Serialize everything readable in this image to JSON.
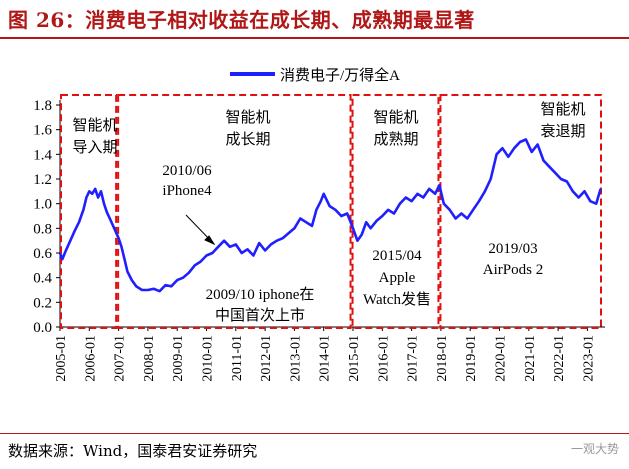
{
  "header": {
    "title": "图 26：消费电子相对收益在成长期、成熟期最显著"
  },
  "footer": {
    "source": "数据来源：Wind，国泰君安证券研究",
    "watermark": "一观大势"
  },
  "chart_data": {
    "type": "line",
    "legend": "消费电子/万得全A",
    "series_color": "#1f1fff",
    "box_color": "#e01010",
    "ylim": [
      0,
      1.8
    ],
    "yticks": [
      "0.0",
      "0.2",
      "0.4",
      "0.6",
      "0.8",
      "1.0",
      "1.2",
      "1.4",
      "1.6",
      "1.8"
    ],
    "xlim": [
      2005.0,
      2023.6
    ],
    "xticks": [
      "2005-01",
      "2006-01",
      "2007-01",
      "2008-01",
      "2009-01",
      "2010-01",
      "2011-01",
      "2012-01",
      "2013-01",
      "2014-01",
      "2015-01",
      "2016-01",
      "2017-01",
      "2018-01",
      "2019-01",
      "2020-01",
      "2021-01",
      "2022-01",
      "2023-01"
    ],
    "phases": [
      {
        "label": "智能机\n导入期",
        "start": 2005.0,
        "end": 2006.95
      },
      {
        "label": "智能机\n成长期",
        "start": 2006.95,
        "end": 2014.95
      },
      {
        "label": "智能机\n成熟期",
        "start": 2014.95,
        "end": 2017.95
      },
      {
        "label": "智能机\n衰退期",
        "start": 2017.95,
        "end": 2023.6
      }
    ],
    "annotations": [
      {
        "text": "2010/06\niPhone4"
      },
      {
        "text": "2009/10 iphone在\n中国首次上市"
      },
      {
        "text": "2015/04\nApple\nWatch发售"
      },
      {
        "text": "2019/03\nAirPods 2"
      }
    ],
    "x": [
      2005.0,
      2005.08,
      2005.2,
      2005.35,
      2005.5,
      2005.65,
      2005.8,
      2005.9,
      2006.0,
      2006.1,
      2006.2,
      2006.3,
      2006.4,
      2006.5,
      2006.6,
      2006.7,
      2006.85,
      2007.0,
      2007.1,
      2007.2,
      2007.3,
      2007.45,
      2007.6,
      2007.8,
      2008.0,
      2008.2,
      2008.4,
      2008.6,
      2008.8,
      2009.0,
      2009.2,
      2009.4,
      2009.6,
      2009.8,
      2010.0,
      2010.2,
      2010.4,
      2010.6,
      2010.8,
      2011.0,
      2011.2,
      2011.4,
      2011.6,
      2011.8,
      2012.0,
      2012.2,
      2012.4,
      2012.6,
      2012.8,
      2013.0,
      2013.2,
      2013.4,
      2013.6,
      2013.75,
      2013.9,
      2014.0,
      2014.2,
      2014.4,
      2014.6,
      2014.8,
      2015.0,
      2015.15,
      2015.3,
      2015.45,
      2015.6,
      2015.8,
      2016.0,
      2016.2,
      2016.4,
      2016.6,
      2016.8,
      2017.0,
      2017.2,
      2017.4,
      2017.6,
      2017.8,
      2017.95,
      2018.1,
      2018.3,
      2018.5,
      2018.7,
      2018.9,
      2019.1,
      2019.3,
      2019.5,
      2019.7,
      2019.9,
      2020.1,
      2020.3,
      2020.5,
      2020.7,
      2020.9,
      2021.1,
      2021.3,
      2021.5,
      2021.7,
      2021.9,
      2022.1,
      2022.3,
      2022.5,
      2022.7,
      2022.9,
      2023.1,
      2023.3,
      2023.45
    ],
    "y": [
      0.6,
      0.55,
      0.62,
      0.7,
      0.78,
      0.85,
      0.95,
      1.05,
      1.1,
      1.08,
      1.12,
      1.05,
      1.1,
      1.0,
      0.93,
      0.88,
      0.8,
      0.72,
      0.65,
      0.55,
      0.45,
      0.38,
      0.33,
      0.3,
      0.3,
      0.31,
      0.29,
      0.34,
      0.33,
      0.38,
      0.4,
      0.44,
      0.5,
      0.53,
      0.58,
      0.6,
      0.65,
      0.7,
      0.65,
      0.67,
      0.6,
      0.63,
      0.58,
      0.68,
      0.62,
      0.67,
      0.7,
      0.72,
      0.76,
      0.8,
      0.88,
      0.85,
      0.82,
      0.95,
      1.02,
      1.08,
      0.98,
      0.95,
      0.9,
      0.92,
      0.8,
      0.7,
      0.75,
      0.85,
      0.8,
      0.86,
      0.9,
      0.95,
      0.92,
      1.0,
      1.05,
      1.02,
      1.08,
      1.05,
      1.12,
      1.08,
      1.15,
      1.0,
      0.95,
      0.88,
      0.92,
      0.88,
      0.95,
      1.02,
      1.1,
      1.2,
      1.4,
      1.45,
      1.38,
      1.45,
      1.5,
      1.52,
      1.42,
      1.48,
      1.35,
      1.3,
      1.25,
      1.2,
      1.18,
      1.1,
      1.05,
      1.1,
      1.02,
      1.0,
      1.12
    ]
  }
}
